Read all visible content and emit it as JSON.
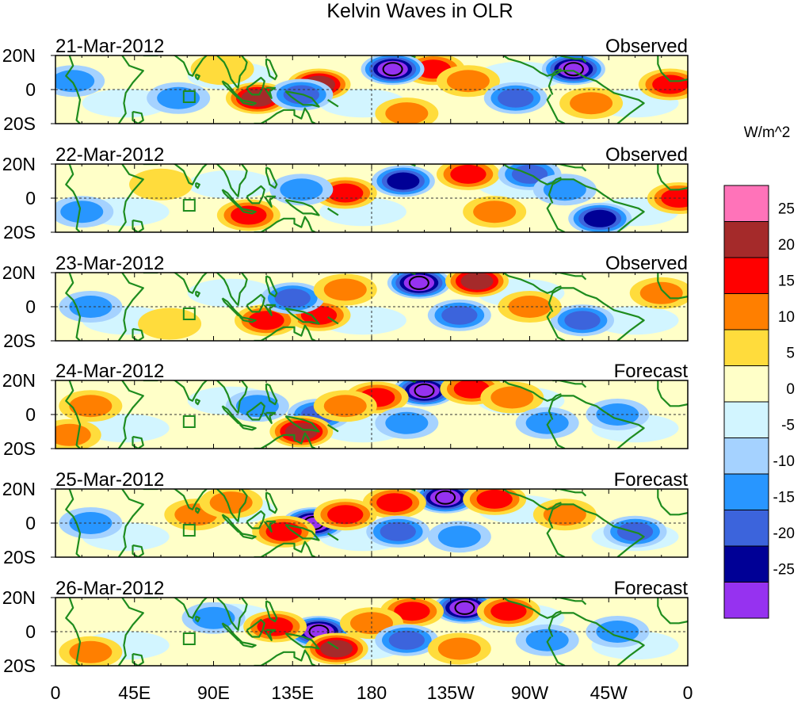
{
  "chart_data": {
    "type": "heatmap",
    "title": "Kelvin Waves in OLR",
    "units": "W/m^2",
    "lat_ticks": [
      "20N",
      "0",
      "20S"
    ],
    "lon_ticks": [
      "0",
      "45E",
      "90E",
      "135E",
      "180",
      "135W",
      "90W",
      "45W",
      "0"
    ],
    "lon_values": [
      0,
      45,
      90,
      135,
      180,
      225,
      270,
      315,
      360
    ],
    "lat_range": [
      -20,
      20
    ],
    "lon_range": [
      0,
      360
    ],
    "contour_levels": [
      -25,
      -20,
      -15,
      -10,
      -5,
      0,
      5,
      10,
      15,
      20,
      25
    ],
    "colorbar_labels": [
      "25",
      "20",
      "15",
      "10",
      "5",
      "0",
      "-5",
      "-10",
      "-15",
      "-20",
      "-25"
    ],
    "colorbar_colors": [
      "#ff73b9",
      "#a52a2a",
      "#ff0000",
      "#ff7f00",
      "#ffdc3c",
      "#ffffc8",
      "#d2f5ff",
      "#a5d2ff",
      "#2896ff",
      "#3c64dc",
      "#000096",
      "#9632f0"
    ],
    "panels": [
      {
        "date": "21-Mar-2012",
        "kind": "Observed",
        "anomalies": [
          {
            "lon": 215,
            "lat": 12,
            "value": 15
          },
          {
            "lon": 192,
            "lat": 12,
            "value": -25
          },
          {
            "lon": 200,
            "lat": -14,
            "value": 10
          },
          {
            "lon": 295,
            "lat": 12,
            "value": -25
          },
          {
            "lon": 150,
            "lat": 3,
            "value": 20
          },
          {
            "lon": 115,
            "lat": -5,
            "value": 20
          },
          {
            "lon": 140,
            "lat": -3,
            "value": -15
          },
          {
            "lon": 235,
            "lat": 5,
            "value": 10
          },
          {
            "lon": 262,
            "lat": -5,
            "value": -15
          },
          {
            "lon": 350,
            "lat": 3,
            "value": 15
          },
          {
            "lon": 10,
            "lat": 5,
            "value": -10
          },
          {
            "lon": 70,
            "lat": -5,
            "value": -10
          },
          {
            "lon": 305,
            "lat": -8,
            "value": 10
          },
          {
            "lon": 95,
            "lat": 12,
            "value": 5
          }
        ]
      },
      {
        "date": "22-Mar-2012",
        "kind": "Observed",
        "anomalies": [
          {
            "lon": 235,
            "lat": 14,
            "value": 15
          },
          {
            "lon": 198,
            "lat": 10,
            "value": -20
          },
          {
            "lon": 165,
            "lat": 3,
            "value": 15
          },
          {
            "lon": 110,
            "lat": -10,
            "value": 15
          },
          {
            "lon": 140,
            "lat": 5,
            "value": -10
          },
          {
            "lon": 270,
            "lat": 14,
            "value": -15
          },
          {
            "lon": 310,
            "lat": -12,
            "value": -20
          },
          {
            "lon": 355,
            "lat": 0,
            "value": 15
          },
          {
            "lon": 15,
            "lat": -8,
            "value": -10
          },
          {
            "lon": 60,
            "lat": 8,
            "value": 5
          },
          {
            "lon": 250,
            "lat": -8,
            "value": 10
          },
          {
            "lon": 290,
            "lat": 5,
            "value": -10
          }
        ]
      },
      {
        "date": "23-Mar-2012",
        "kind": "Observed",
        "anomalies": [
          {
            "lon": 207,
            "lat": 14,
            "value": -25
          },
          {
            "lon": 240,
            "lat": 15,
            "value": 20
          },
          {
            "lon": 150,
            "lat": -5,
            "value": 15
          },
          {
            "lon": 120,
            "lat": -8,
            "value": 15
          },
          {
            "lon": 135,
            "lat": 5,
            "value": -15
          },
          {
            "lon": 165,
            "lat": 10,
            "value": 10
          },
          {
            "lon": 230,
            "lat": -5,
            "value": -15
          },
          {
            "lon": 300,
            "lat": -8,
            "value": -15
          },
          {
            "lon": 345,
            "lat": 8,
            "value": 10
          },
          {
            "lon": 20,
            "lat": 0,
            "value": -10
          },
          {
            "lon": 270,
            "lat": 0,
            "value": 10
          },
          {
            "lon": 65,
            "lat": -10,
            "value": 5
          }
        ]
      },
      {
        "date": "24-Mar-2012",
        "kind": "Forecast",
        "anomalies": [
          {
            "lon": 210,
            "lat": 14,
            "value": -25
          },
          {
            "lon": 237,
            "lat": 15,
            "value": 15
          },
          {
            "lon": 183,
            "lat": 10,
            "value": 15
          },
          {
            "lon": 150,
            "lat": 0,
            "value": -15
          },
          {
            "lon": 140,
            "lat": -10,
            "value": 20
          },
          {
            "lon": 165,
            "lat": 5,
            "value": 10
          },
          {
            "lon": 200,
            "lat": -5,
            "value": -10
          },
          {
            "lon": 115,
            "lat": 5,
            "value": -10
          },
          {
            "lon": 260,
            "lat": 10,
            "value": 10
          },
          {
            "lon": 320,
            "lat": 0,
            "value": -10
          },
          {
            "lon": 20,
            "lat": 5,
            "value": 10
          },
          {
            "lon": 8,
            "lat": -12,
            "value": 10
          },
          {
            "lon": 280,
            "lat": -5,
            "value": -10
          }
        ]
      },
      {
        "date": "25-Mar-2012",
        "kind": "Forecast",
        "anomalies": [
          {
            "lon": 222,
            "lat": 15,
            "value": -25
          },
          {
            "lon": 250,
            "lat": 14,
            "value": 15
          },
          {
            "lon": 193,
            "lat": 12,
            "value": 15
          },
          {
            "lon": 147,
            "lat": 0,
            "value": -25
          },
          {
            "lon": 165,
            "lat": 5,
            "value": 15
          },
          {
            "lon": 130,
            "lat": -5,
            "value": 15
          },
          {
            "lon": 195,
            "lat": -5,
            "value": -15
          },
          {
            "lon": 230,
            "lat": -8,
            "value": -10
          },
          {
            "lon": 290,
            "lat": 5,
            "value": 10
          },
          {
            "lon": 330,
            "lat": -5,
            "value": -15
          },
          {
            "lon": 20,
            "lat": 0,
            "value": -10
          },
          {
            "lon": 80,
            "lat": 5,
            "value": 10
          },
          {
            "lon": 100,
            "lat": 12,
            "value": 10
          }
        ]
      },
      {
        "date": "26-Mar-2012",
        "kind": "Forecast",
        "anomalies": [
          {
            "lon": 233,
            "lat": 14,
            "value": -25
          },
          {
            "lon": 203,
            "lat": 12,
            "value": 15
          },
          {
            "lon": 258,
            "lat": 12,
            "value": 15
          },
          {
            "lon": 150,
            "lat": 0,
            "value": -25
          },
          {
            "lon": 160,
            "lat": -10,
            "value": 20
          },
          {
            "lon": 125,
            "lat": 3,
            "value": 15
          },
          {
            "lon": 180,
            "lat": 5,
            "value": 10
          },
          {
            "lon": 200,
            "lat": -5,
            "value": -15
          },
          {
            "lon": 280,
            "lat": -5,
            "value": -10
          },
          {
            "lon": 320,
            "lat": 0,
            "value": -10
          },
          {
            "lon": 90,
            "lat": 8,
            "value": -10
          },
          {
            "lon": 20,
            "lat": -12,
            "value": 10
          },
          {
            "lon": 230,
            "lat": -10,
            "value": 10
          }
        ]
      }
    ]
  },
  "colors": {
    "coastline": "#1e8c1e",
    "frame": "#000000"
  }
}
